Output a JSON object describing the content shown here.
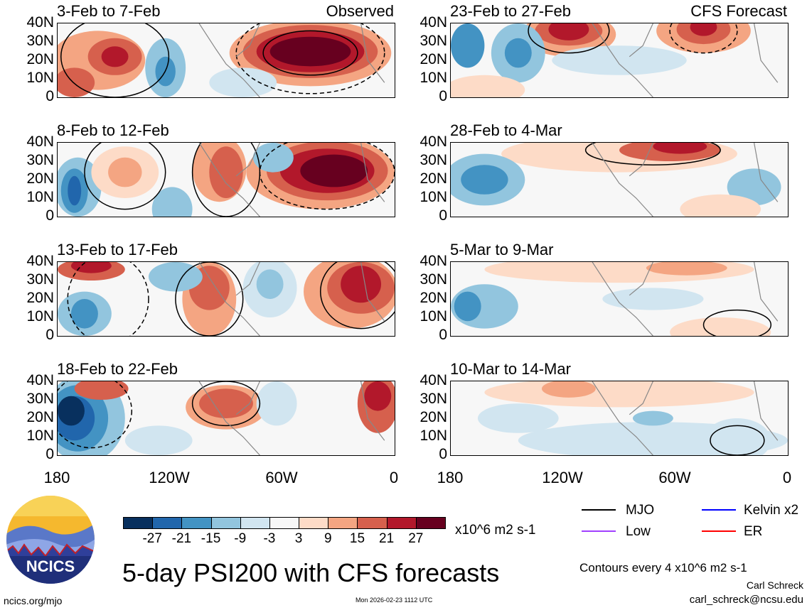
{
  "chart_data": {
    "type": "heatmap",
    "title": "5-day PSI200 with CFS forecasts",
    "variable": "PSI200",
    "units": "x10^6 m2 s-1",
    "contour_note": "Contours every 4 x10^6 m2 s-1",
    "yticks": [
      "40N",
      "30N",
      "20N",
      "10N",
      "0"
    ],
    "xticks": [
      "180",
      "120W",
      "60W",
      "0"
    ],
    "observed_label": "Observed",
    "forecast_label": "CFS Forecast",
    "panels": [
      {
        "period": "3-Feb to 7-Feb",
        "source": "Observed"
      },
      {
        "period": "8-Feb to 12-Feb",
        "source": "Observed"
      },
      {
        "period": "13-Feb to 17-Feb",
        "source": "Observed"
      },
      {
        "period": "18-Feb to 22-Feb",
        "source": "Observed"
      },
      {
        "period": "23-Feb to 27-Feb",
        "source": "CFS Forecast"
      },
      {
        "period": "28-Feb to 4-Mar",
        "source": "CFS Forecast"
      },
      {
        "period": "5-Mar to 9-Mar",
        "source": "CFS Forecast"
      },
      {
        "period": "10-Mar to 14-Mar",
        "source": "CFS Forecast"
      }
    ],
    "colorbar": {
      "labels": [
        "-27",
        "-21",
        "-15",
        "-9",
        "-3",
        "3",
        "9",
        "15",
        "21",
        "27"
      ],
      "colors": [
        "#08305e",
        "#2166ac",
        "#4393c3",
        "#92c5de",
        "#d1e5f0",
        "#f7f7f7",
        "#fddbc7",
        "#f4a582",
        "#d6604d",
        "#b2182b",
        "#67001f"
      ]
    },
    "legend": [
      {
        "label": "MJO",
        "color": "#000000"
      },
      {
        "label": "Kelvin x2",
        "color": "#0000ff"
      },
      {
        "label": "Low",
        "color": "#a040ff"
      },
      {
        "label": "ER",
        "color": "#ff0000"
      }
    ]
  },
  "logo": {
    "text": "NCICS"
  },
  "footer": {
    "url": "ncics.org/mjo",
    "timestamp": "Mon 2026-02-23 1112 UTC",
    "author": "Carl Schreck",
    "email": "carl_schreck@ncsu.edu"
  }
}
